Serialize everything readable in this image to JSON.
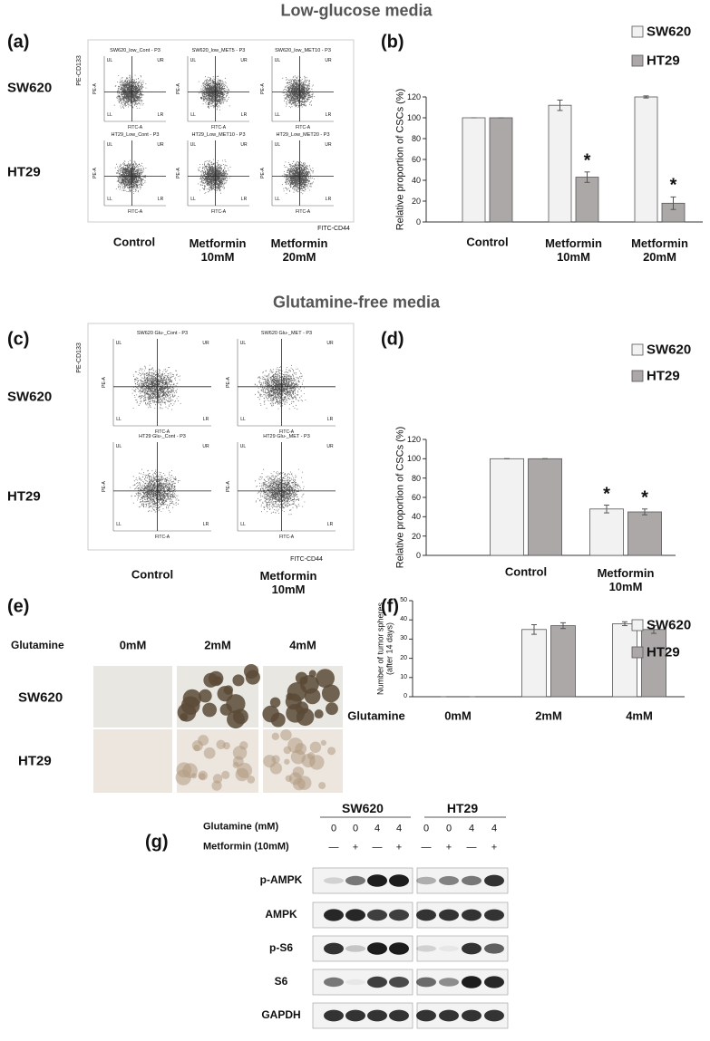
{
  "headings": {
    "low_glucose": "Low-glucose media",
    "glutamine_free": "Glutamine-free media"
  },
  "panel_a": {
    "label": "(a)",
    "rows": [
      "SW620",
      "HT29"
    ],
    "y_axis": "PE-CD133",
    "x_axis": "FITC-CD44",
    "columns": [
      "Control",
      "Metformin\n10mM",
      "Metformin\n20mM"
    ],
    "plots": [
      "SW620_low_Cont - P3",
      "SW620_low_MET5 - P3",
      "SW620_low_MET10 - P3",
      "HT29_Low_Cont - P3",
      "HT29_Low_MET10 - P3",
      "HT29_Low_MET20 - P3"
    ],
    "quadrants": [
      "UL",
      "UR",
      "LL",
      "LR"
    ],
    "plot_x": "FITC-A",
    "plot_y": "PE-A"
  },
  "panel_c": {
    "label": "(c)",
    "rows": [
      "SW620",
      "HT29"
    ],
    "y_axis": "PE-CD133",
    "x_axis": "FITC-CD44",
    "columns": [
      "Control",
      "Metformin\n10mM"
    ],
    "plots": [
      "SW620 Glu-_Cont - P3",
      "SW620 Glu-_MET - P3",
      "HT29 Glu-_Cont - P3",
      "HT29 Glu-_MET - P3"
    ],
    "quadrants": [
      "UL",
      "UR",
      "LL",
      "LR"
    ],
    "plot_x": "FITC-A",
    "plot_y": "PE-A"
  },
  "panel_e": {
    "label": "(e)",
    "x_label": "Glutamine",
    "columns": [
      "0mM",
      "2mM",
      "4mM"
    ],
    "rows": [
      "SW620",
      "HT29"
    ]
  },
  "panel_g": {
    "label": "(g)",
    "groups": [
      "SW620",
      "HT29"
    ],
    "condition_labels": [
      "Glutamine (mM)",
      "Metformin (10mM)"
    ],
    "glutamine": [
      0,
      0,
      4,
      4
    ],
    "metformin": [
      "—",
      "+",
      "—",
      "+"
    ],
    "proteins": [
      "p-AMPK",
      "AMPK",
      "p-S6",
      "S6",
      "GAPDH"
    ]
  },
  "chart_data": [
    {
      "type": "bar",
      "label": "(b)",
      "categories": [
        "Control",
        "Metformin\n10mM",
        "Metformin\n20mM"
      ],
      "y_label": "Relative proportion of CSCs (%)",
      "ylim": [
        0,
        120
      ],
      "yticks": [
        0,
        20,
        40,
        60,
        80,
        100,
        120
      ],
      "series": [
        {
          "name": "SW620",
          "color": "#f2f2f2",
          "values": [
            100,
            112,
            120
          ],
          "errors": [
            0,
            5,
            1
          ]
        },
        {
          "name": "HT29",
          "color": "#aca8a8",
          "values": [
            100,
            43,
            18
          ],
          "errors": [
            0,
            5,
            6
          ]
        }
      ],
      "annotations": [
        {
          "text": "*",
          "series": 1,
          "index": 1
        },
        {
          "text": "*",
          "series": 1,
          "index": 2
        }
      ]
    },
    {
      "type": "bar",
      "label": "(d)",
      "categories": [
        "Control",
        "Metformin\n10mM"
      ],
      "y_label": "Relative proportion of CSCs (%)",
      "ylim": [
        0,
        120
      ],
      "yticks": [
        0,
        20,
        40,
        60,
        80,
        100,
        120
      ],
      "series": [
        {
          "name": "SW620",
          "color": "#f2f2f2",
          "values": [
            100,
            48
          ],
          "errors": [
            0,
            4
          ]
        },
        {
          "name": "HT29",
          "color": "#aca8a8",
          "values": [
            100,
            45
          ],
          "errors": [
            0,
            3
          ]
        }
      ],
      "annotations": [
        {
          "text": "*",
          "series": 0,
          "index": 1
        },
        {
          "text": "*",
          "series": 1,
          "index": 1
        }
      ]
    },
    {
      "type": "bar",
      "label": "(f)",
      "x_label": "Glutamine",
      "categories": [
        "0mM",
        "2mM",
        "4mM"
      ],
      "y_label": "Number of tumor spheres\n(after 14 days)",
      "ylim": [
        0,
        50
      ],
      "yticks": [
        0,
        10,
        20,
        30,
        40,
        50
      ],
      "series": [
        {
          "name": "SW620",
          "color": "#f2f2f2",
          "values": [
            0,
            35,
            38
          ],
          "errors": [
            0,
            2.5,
            1
          ]
        },
        {
          "name": "HT29",
          "color": "#aca8a8",
          "values": [
            0,
            37,
            35
          ],
          "errors": [
            0,
            1.5,
            2
          ]
        }
      ]
    }
  ]
}
